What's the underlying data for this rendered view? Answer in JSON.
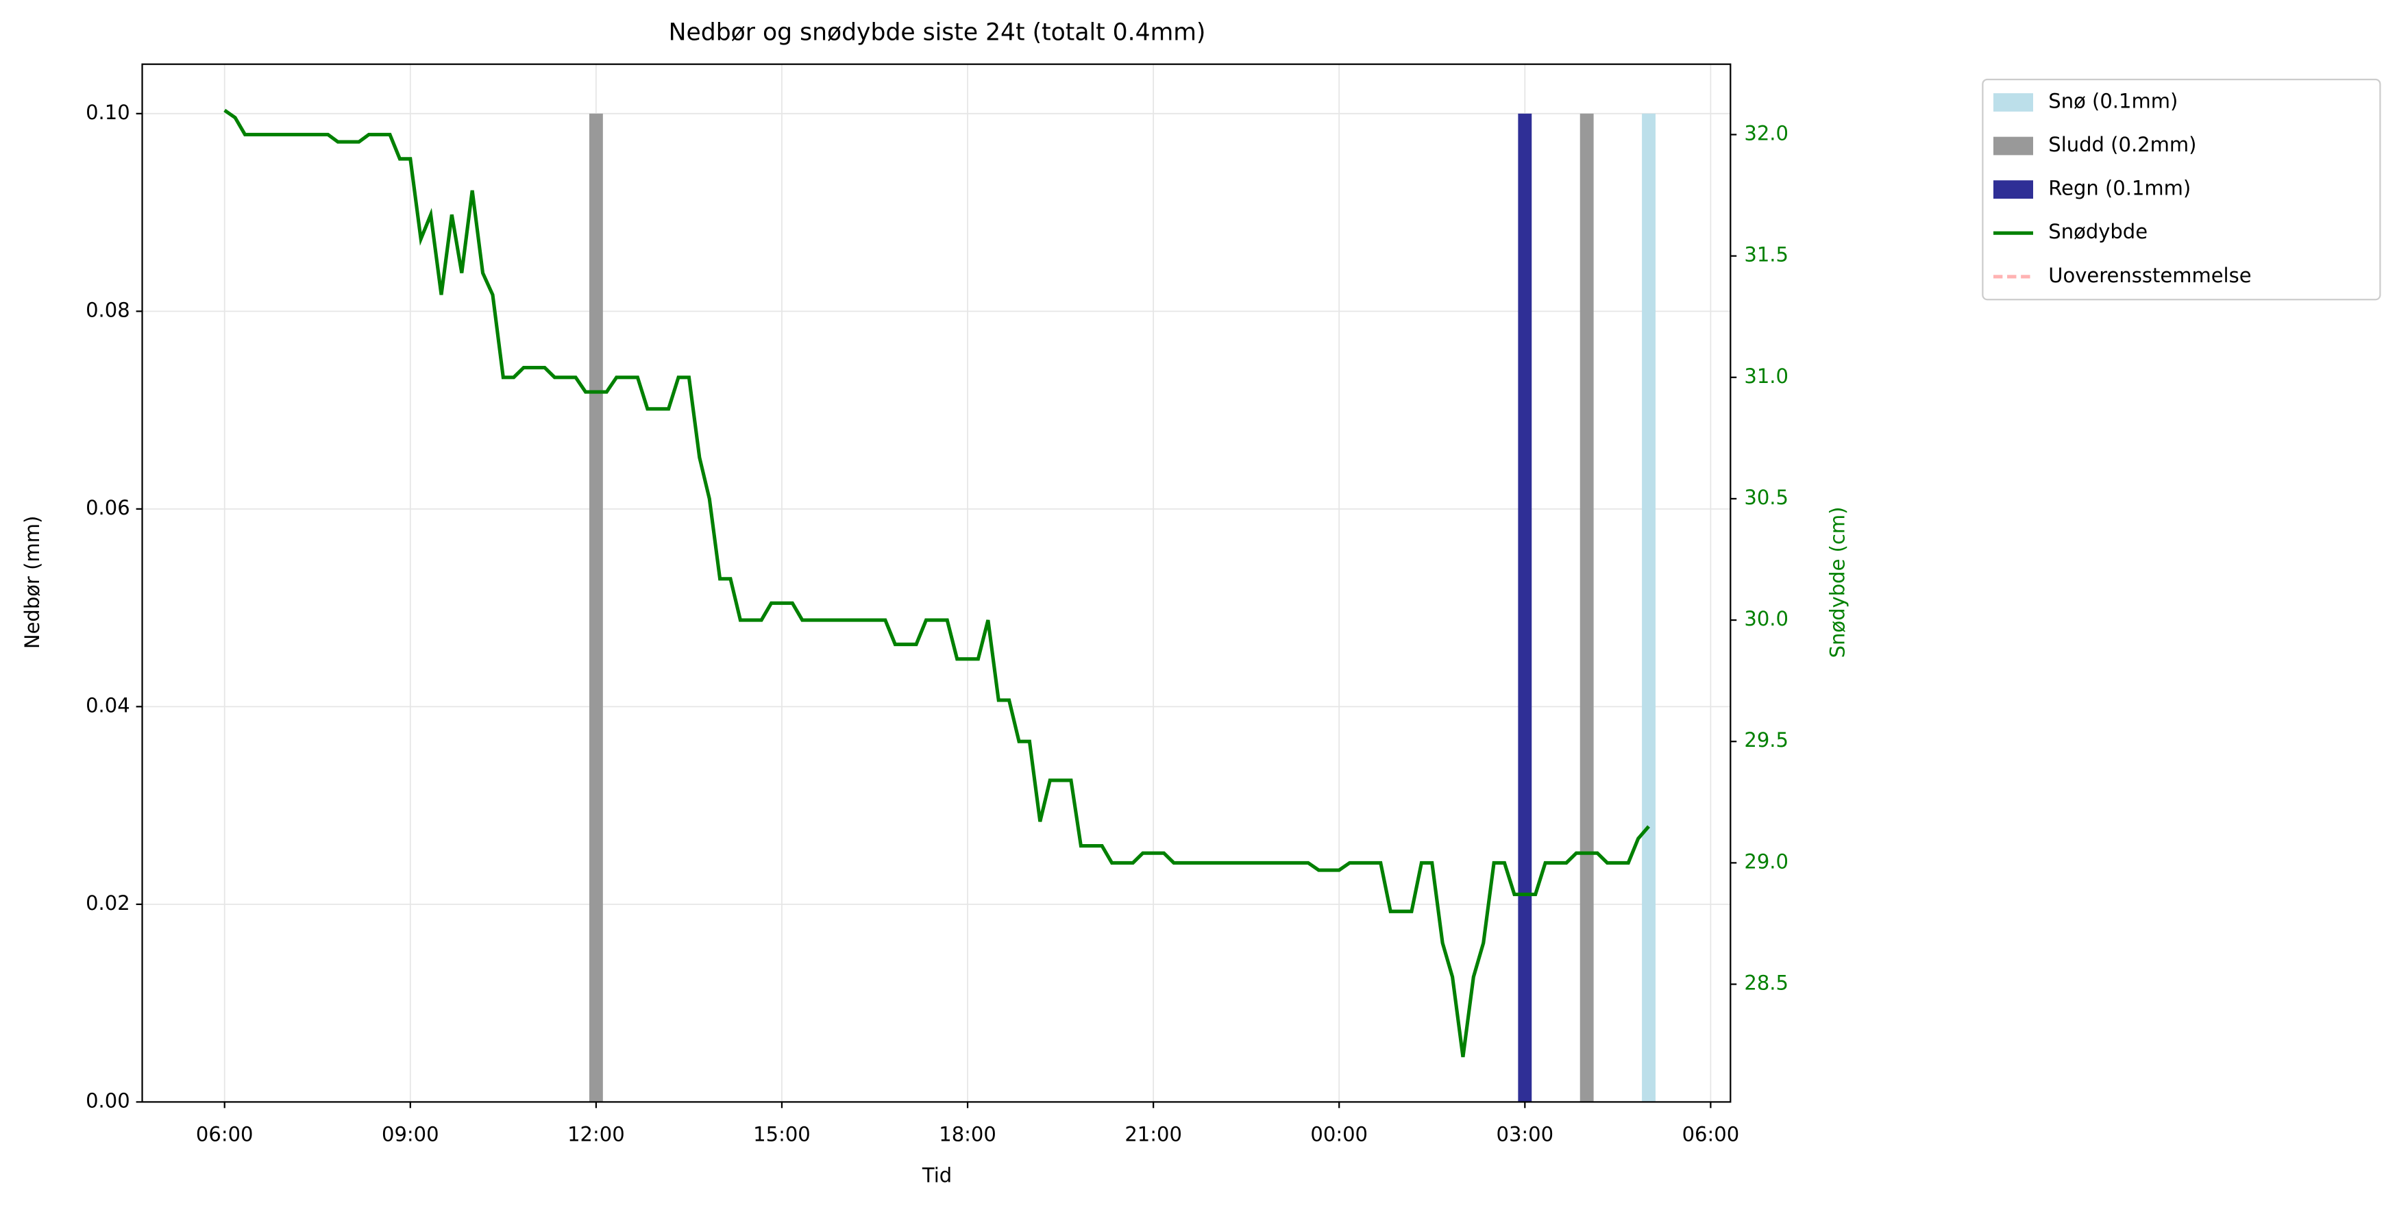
{
  "chart_data": {
    "type": "combo",
    "title": "Nedbør og snødybde siste 24t (totalt 0.4mm)",
    "x_label": "Tid",
    "y_label": "Nedbør (mm)",
    "y2_label": "Snødybde (cm)",
    "xlim": [
      4.67,
      30.32
    ],
    "xticks": [
      {
        "value": 6,
        "label": "06:00"
      },
      {
        "value": 9,
        "label": "09:00"
      },
      {
        "value": 12,
        "label": "12:00"
      },
      {
        "value": 15,
        "label": "15:00"
      },
      {
        "value": 18,
        "label": "18:00"
      },
      {
        "value": 21,
        "label": "21:00"
      },
      {
        "value": 24,
        "label": "00:00"
      },
      {
        "value": 27,
        "label": "03:00"
      },
      {
        "value": 30,
        "label": "06:00"
      }
    ],
    "ylim": [
      0,
      0.105
    ],
    "yticks": [
      {
        "value": 0,
        "label": "0.00"
      },
      {
        "value": 0.02,
        "label": "0.02"
      },
      {
        "value": 0.04,
        "label": "0.04"
      },
      {
        "value": 0.06,
        "label": "0.06"
      },
      {
        "value": 0.08,
        "label": "0.08"
      },
      {
        "value": 0.1,
        "label": "0.10"
      }
    ],
    "y2lim": [
      28.015,
      32.29
    ],
    "y2ticks": [
      28.5,
      {
        "value": 29,
        "label": "29.0"
      },
      29.5,
      {
        "value": 30,
        "label": "30.0"
      },
      30.5,
      {
        "value": 31,
        "label": "31.0"
      },
      31.5,
      {
        "value": 32,
        "label": "32.0"
      }
    ],
    "y2_color": "#008000",
    "grid": true,
    "legend": "outside-right",
    "series": [
      {
        "name": "Snø (0.1mm)",
        "type": "bar",
        "color": "#bcdfea",
        "x": [
          29.0
        ],
        "values": [
          0.1
        ]
      },
      {
        "name": "Sludd (0.2mm)",
        "type": "bar",
        "color": "#999999",
        "x": [
          12.0,
          28.0
        ],
        "values": [
          0.1,
          0.1
        ]
      },
      {
        "name": "Regn (0.1mm)",
        "type": "bar",
        "color": "#2f2f96",
        "x": [
          27.0
        ],
        "values": [
          0.1
        ]
      },
      {
        "name": "Snødybde",
        "type": "line",
        "axis": "y2",
        "color": "#008000",
        "x": [
          6.0,
          6.17,
          6.33,
          7.67,
          7.83,
          8.17,
          8.33,
          8.67,
          8.83,
          9.0,
          9.17,
          9.33,
          9.5,
          9.67,
          9.83,
          10.0,
          10.17,
          10.33,
          10.5,
          10.67,
          10.83,
          11.17,
          11.33,
          11.67,
          11.83,
          12.17,
          12.33,
          12.67,
          12.83,
          13.17,
          13.33,
          13.5,
          13.67,
          13.83,
          14.0,
          14.17,
          14.33,
          14.67,
          14.83,
          15.17,
          15.33,
          16.67,
          16.83,
          17.17,
          17.33,
          17.67,
          17.83,
          18.17,
          18.33,
          18.5,
          18.67,
          18.83,
          19.0,
          19.17,
          19.33,
          19.67,
          19.83,
          20.17,
          20.33,
          20.67,
          20.83,
          21.17,
          21.33,
          23.5,
          23.67,
          24.0,
          24.17,
          24.67,
          24.83,
          25.17,
          25.33,
          25.5,
          25.67,
          25.83,
          26.0,
          26.17,
          26.33,
          26.5,
          26.67,
          26.83,
          27.17,
          27.33,
          27.67,
          27.83,
          28.17,
          28.33,
          28.67,
          28.83,
          29.0
        ],
        "values": [
          32.1,
          32.07,
          32.0,
          32.0,
          31.97,
          31.97,
          32.0,
          32.0,
          31.9,
          31.9,
          31.57,
          31.67,
          31.34,
          31.67,
          31.43,
          31.77,
          31.43,
          31.34,
          31.0,
          31.0,
          31.04,
          31.04,
          31.0,
          31.0,
          30.94,
          30.94,
          31.0,
          31.0,
          30.87,
          30.87,
          31.0,
          31.0,
          30.67,
          30.5,
          30.17,
          30.17,
          30.0,
          30.0,
          30.07,
          30.07,
          30.0,
          30.0,
          29.9,
          29.9,
          30.0,
          30.0,
          29.84,
          29.84,
          30.0,
          29.67,
          29.67,
          29.5,
          29.5,
          29.17,
          29.34,
          29.34,
          29.07,
          29.07,
          29.0,
          29.0,
          29.04,
          29.04,
          29.0,
          29.0,
          28.97,
          28.97,
          29.0,
          29.0,
          28.8,
          28.8,
          29.0,
          29.0,
          28.67,
          28.53,
          28.2,
          28.53,
          28.67,
          29.0,
          29.0,
          28.87,
          28.87,
          29.0,
          29.0,
          29.04,
          29.04,
          29.0,
          29.0,
          29.1,
          29.15
        ]
      },
      {
        "name": "Uoverensstemmelse",
        "type": "line",
        "axis": "y2",
        "dashed": true,
        "color": "#ffb3b3",
        "x": [],
        "values": []
      }
    ]
  }
}
